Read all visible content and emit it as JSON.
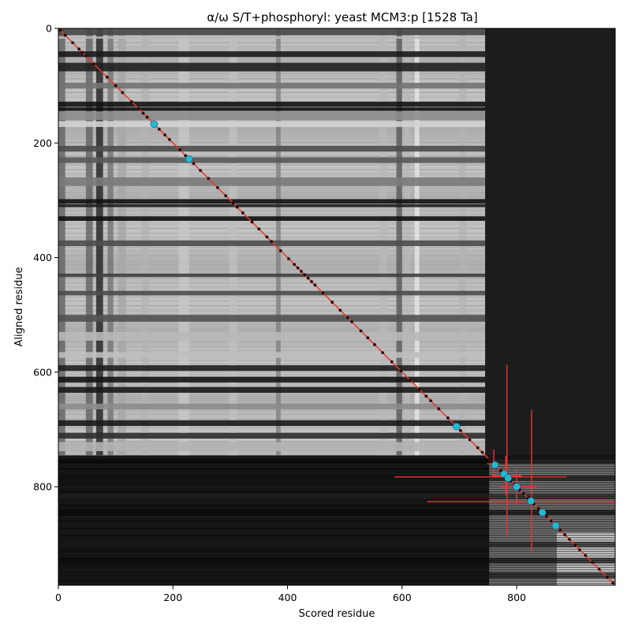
{
  "chart_data": {
    "type": "heatmap",
    "title": "α/ω S/T+phosphoryl: yeast MCM3:p [1528 Ta]",
    "xlabel": "Scored residue",
    "ylabel": "Aligned residue",
    "xlim": [
      0,
      972
    ],
    "ylim": [
      972,
      0
    ],
    "x_ticks": [
      0,
      200,
      400,
      600,
      800
    ],
    "y_ticks": [
      0,
      200,
      400,
      600,
      800
    ],
    "grid": false,
    "colormap": "grayscale",
    "diagonal_color": "#ee3333",
    "marker_color": "#22bbcc",
    "residue_points": [
      3,
      12,
      25,
      36,
      42,
      48,
      62,
      85,
      100,
      112,
      128,
      140,
      148,
      155,
      176,
      186,
      194,
      212,
      222,
      236,
      248,
      262,
      278,
      292,
      305,
      312,
      322,
      338,
      350,
      364,
      372,
      388,
      402,
      412,
      418,
      424,
      430,
      436,
      442,
      448,
      462,
      478,
      492,
      505,
      512,
      528,
      540,
      552,
      566,
      582,
      598,
      614,
      630,
      642,
      650,
      664,
      680,
      702,
      718,
      732,
      740,
      752,
      756,
      764,
      772,
      778,
      786,
      790,
      796,
      805,
      812,
      820,
      830,
      838,
      852,
      860,
      870,
      876,
      884,
      892,
      902,
      910,
      920,
      932,
      944,
      958,
      968
    ],
    "phosphosites": [
      167,
      228,
      695,
      762,
      778,
      785,
      800,
      825,
      845,
      868
    ],
    "error_crosses": [
      {
        "x": 783,
        "y": 783,
        "xerr": [
          196,
          104
        ],
        "yerr": [
          196,
          104
        ]
      },
      {
        "x": 826,
        "y": 826,
        "xerr": [
          182,
          148
        ],
        "yerr": [
          160,
          88
        ]
      },
      {
        "x": 781,
        "y": 781,
        "xerr": [
          24,
          28
        ],
        "yerr": [
          35,
          34
        ]
      },
      {
        "x": 800,
        "y": 800,
        "xerr": [
          30,
          36
        ],
        "yerr": [
          28,
          30
        ]
      },
      {
        "x": 760,
        "y": 760,
        "xerr": [
          12,
          10
        ],
        "yerr": [
          25,
          22
        ]
      }
    ],
    "row_bands": [
      [
        0,
        12,
        0.28
      ],
      [
        14,
        18,
        0.72
      ],
      [
        40,
        50,
        0.1
      ],
      [
        60,
        75,
        0.12
      ],
      [
        95,
        105,
        0.45
      ],
      [
        128,
        137,
        0.07
      ],
      [
        138,
        144,
        0.05
      ],
      [
        145,
        160,
        0.55
      ],
      [
        162,
        172,
        0.82
      ],
      [
        205,
        215,
        0.3
      ],
      [
        225,
        235,
        0.35
      ],
      [
        260,
        275,
        0.48
      ],
      [
        298,
        306,
        0.07
      ],
      [
        307,
        312,
        0.12
      ],
      [
        328,
        336,
        0.06
      ],
      [
        370,
        380,
        0.3
      ],
      [
        428,
        434,
        0.25
      ],
      [
        458,
        466,
        0.3
      ],
      [
        500,
        512,
        0.32
      ],
      [
        530,
        545,
        0.72
      ],
      [
        565,
        575,
        0.75
      ],
      [
        588,
        598,
        0.12
      ],
      [
        608,
        618,
        0.08
      ],
      [
        626,
        636,
        0.1
      ],
      [
        655,
        665,
        0.55
      ],
      [
        684,
        694,
        0.1
      ],
      [
        706,
        716,
        0.18
      ],
      [
        722,
        738,
        0.7
      ]
    ],
    "col_bands": [
      [
        0,
        12,
        0.38
      ],
      [
        48,
        60,
        0.38
      ],
      [
        66,
        78,
        0.12
      ],
      [
        86,
        96,
        0.45
      ],
      [
        104,
        118,
        0.65
      ],
      [
        145,
        158,
        0.7
      ],
      [
        210,
        228,
        0.78
      ],
      [
        298,
        312,
        0.75
      ],
      [
        380,
        388,
        0.5
      ],
      [
        560,
        574,
        0.72
      ],
      [
        590,
        600,
        0.34
      ],
      [
        604,
        614,
        0.72
      ],
      [
        622,
        630,
        0.9
      ],
      [
        700,
        712,
        0.7
      ]
    ],
    "lower_row_bands": [
      [
        752,
        760,
        0.03
      ],
      [
        780,
        790,
        0.06
      ],
      [
        812,
        822,
        0.12
      ],
      [
        840,
        850,
        0.03
      ],
      [
        896,
        906,
        0.1
      ],
      [
        924,
        934,
        0.04
      ],
      [
        950,
        960,
        0.08
      ]
    ]
  }
}
